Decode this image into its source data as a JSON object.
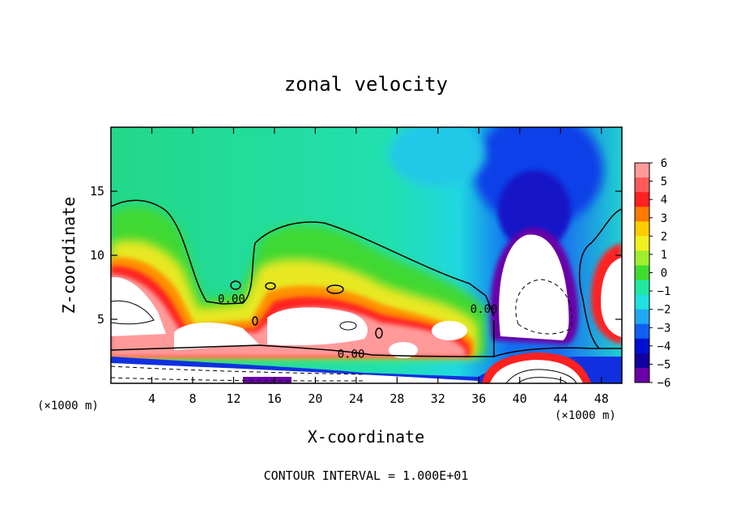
{
  "chart_data": {
    "type": "heatmap",
    "title": "zonal velocity",
    "xlabel": "X-coordinate",
    "ylabel": "Z-coordinate",
    "x_unit": "(×1000 m)",
    "y_unit": "(×1000 m)",
    "xlim": [
      0,
      50
    ],
    "ylim": [
      0,
      20
    ],
    "xticks": [
      "4",
      "8",
      "12",
      "16",
      "20",
      "24",
      "28",
      "32",
      "36",
      "40",
      "44",
      "48"
    ],
    "xtick_values": [
      4,
      8,
      12,
      16,
      20,
      24,
      28,
      32,
      36,
      40,
      44,
      48
    ],
    "yticks": [
      "5",
      "10",
      "15"
    ],
    "ytick_values": [
      5,
      10,
      15
    ],
    "colorbar": {
      "labels": [
        "6",
        "5",
        "4",
        "3",
        "2",
        "1",
        "0",
        "−1",
        "−2",
        "−3",
        "−4",
        "−5",
        "−6"
      ],
      "values": [
        6,
        5,
        4,
        3,
        2,
        1,
        0,
        -1,
        -2,
        -3,
        -4,
        -5,
        -6
      ],
      "colors": [
        "#ff9a9a",
        "#ff5a5a",
        "#ff2020",
        "#ff7a00",
        "#ffcc00",
        "#f0f020",
        "#a0ee30",
        "#40dd30",
        "#20e8a0",
        "#20e0e0",
        "#20a8f0",
        "#1060f0",
        "#0010d0",
        "#1000a0",
        "#6a00a8"
      ]
    },
    "contour_labels": [
      {
        "text": "0.00",
        "x": 11.8,
        "z": 6.3
      },
      {
        "text": "0.00",
        "x": 23.5,
        "z": 2.0
      },
      {
        "text": "0.00",
        "x": 36.5,
        "z": 5.5
      }
    ],
    "contour_interval_text": "CONTOUR INTERVAL = 1.000E+01"
  }
}
